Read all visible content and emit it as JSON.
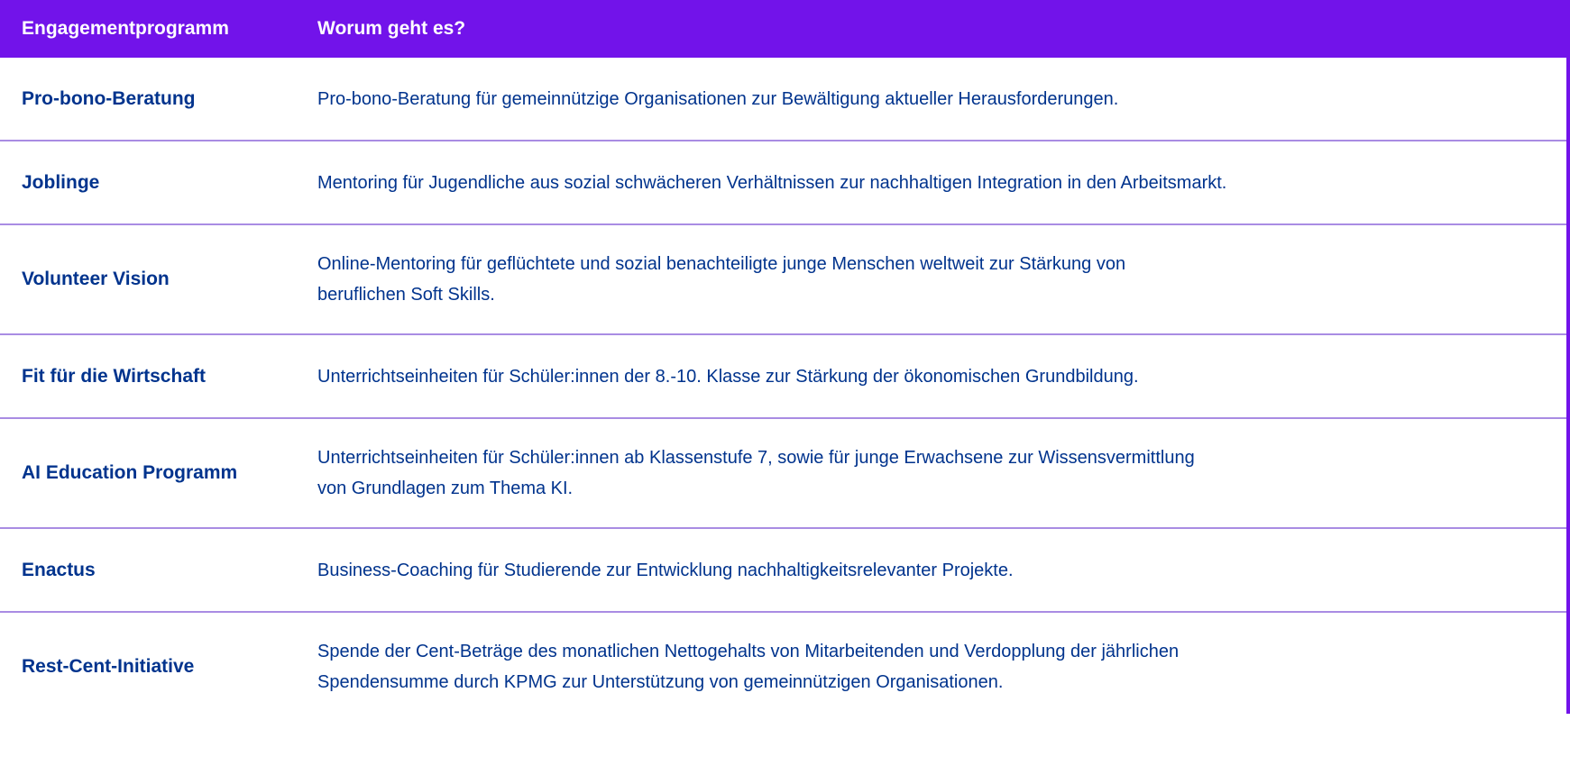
{
  "colors": {
    "accent_purple": "#7213ea",
    "divider_light_purple": "#a98ce3",
    "text_navy": "#00338d",
    "header_text": "#ffffff"
  },
  "table": {
    "header": {
      "col1": "Engagementprogramm",
      "col2": "Worum geht es?"
    },
    "rows": [
      {
        "program": "Pro-bono-Beratung",
        "description": "Pro-bono-Beratung für gemeinnützige Organisationen zur Bewältigung aktueller Herausforderungen."
      },
      {
        "program": "Joblinge",
        "description": "Mentoring für Jugendliche aus sozial schwächeren Verhältnissen zur nachhaltigen Integration in den Arbeitsmarkt."
      },
      {
        "program": "Volunteer Vision",
        "description": "Online-Mentoring für geflüchtete und sozial benachteiligte junge Menschen weltweit zur Stärkung von\nberuflichen Soft Skills."
      },
      {
        "program": "Fit für die Wirtschaft",
        "description": "Unterrichtseinheiten für Schüler:innen der 8.-10. Klasse zur Stärkung der ökonomischen Grundbildung."
      },
      {
        "program": "AI Education Programm",
        "description": "Unterrichtseinheiten für Schüler:innen ab Klassenstufe 7, sowie für junge Erwachsene zur Wissensvermittlung\nvon Grundlagen zum Thema KI."
      },
      {
        "program": "Enactus",
        "description": "Business-Coaching für Studierende zur Entwicklung nachhaltigkeitsrelevanter Projekte."
      },
      {
        "program": "Rest-Cent-Initiative",
        "description": "Spende der Cent-Beträge des monatlichen Nettogehalts von Mitarbeitenden und Verdopplung der jährlichen\nSpendensumme durch KPMG zur Unterstützung von gemeinnützigen Organisationen."
      }
    ]
  }
}
